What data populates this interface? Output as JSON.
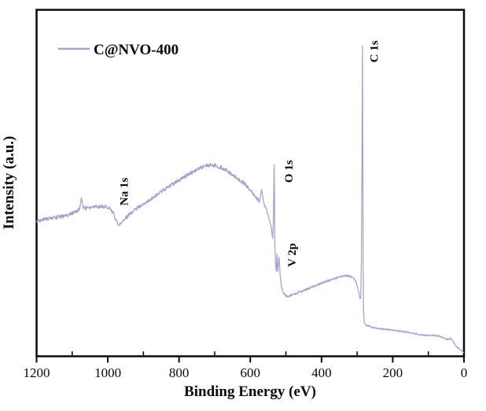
{
  "figure": {
    "kind": "XPS survey spectrum",
    "background": "#ffffff",
    "frame_color": "#0a0a0a",
    "text_color": "#0a0a0a"
  },
  "legend": {
    "label": "C@NVO-400"
  },
  "chart_data": {
    "type": "line",
    "title": "",
    "xlabel": "Binding Energy (eV)",
    "ylabel": "Intensity (a.u.)",
    "legend_position": "top-left",
    "grid": false,
    "x_axis": {
      "min": 0,
      "max": 1200,
      "inverted": true,
      "major_ticks": [
        1200,
        1000,
        800,
        600,
        400,
        200,
        0
      ],
      "minor_ticks": [
        1100,
        900,
        700,
        500,
        300,
        100
      ]
    },
    "y_axis": {
      "label": "Intensity (a.u.)",
      "ticks": [],
      "units": "arbitrary"
    },
    "series": [
      {
        "name": "C@NVO-400",
        "color": "#a8a2cb",
        "points_format": "[binding_energy_eV, intensity_fraction_of_axis_height]",
        "points": [
          [
            1200,
            0.39
          ],
          [
            1170,
            0.396
          ],
          [
            1140,
            0.402
          ],
          [
            1110,
            0.409
          ],
          [
            1088,
            0.418
          ],
          [
            1079,
            0.425
          ],
          [
            1074,
            0.458
          ],
          [
            1069,
            0.428
          ],
          [
            1045,
            0.43
          ],
          [
            1015,
            0.433
          ],
          [
            995,
            0.43
          ],
          [
            982,
            0.408
          ],
          [
            972,
            0.379
          ],
          [
            962,
            0.384
          ],
          [
            950,
            0.398
          ],
          [
            935,
            0.414
          ],
          [
            910,
            0.434
          ],
          [
            885,
            0.45
          ],
          [
            860,
            0.468
          ],
          [
            835,
            0.486
          ],
          [
            810,
            0.502
          ],
          [
            785,
            0.518
          ],
          [
            760,
            0.533
          ],
          [
            735,
            0.546
          ],
          [
            715,
            0.552
          ],
          [
            698,
            0.551
          ],
          [
            682,
            0.545
          ],
          [
            660,
            0.532
          ],
          [
            636,
            0.513
          ],
          [
            615,
            0.496
          ],
          [
            598,
            0.477
          ],
          [
            586,
            0.463
          ],
          [
            574,
            0.447
          ],
          [
            568,
            0.482
          ],
          [
            562,
            0.441
          ],
          [
            555,
            0.425
          ],
          [
            548,
            0.402
          ],
          [
            542,
            0.376
          ],
          [
            537,
            0.34
          ],
          [
            535,
            0.4
          ],
          [
            533,
            0.552
          ],
          [
            532,
            0.47
          ],
          [
            531,
            0.33
          ],
          [
            529,
            0.262
          ],
          [
            527,
            0.246
          ],
          [
            525,
            0.295
          ],
          [
            523,
            0.244
          ],
          [
            519,
            0.286
          ],
          [
            516,
            0.232
          ],
          [
            512,
            0.2
          ],
          [
            507,
            0.184
          ],
          [
            498,
            0.172
          ],
          [
            487,
            0.176
          ],
          [
            470,
            0.182
          ],
          [
            450,
            0.19
          ],
          [
            430,
            0.198
          ],
          [
            410,
            0.207
          ],
          [
            390,
            0.215
          ],
          [
            370,
            0.222
          ],
          [
            350,
            0.229
          ],
          [
            335,
            0.233
          ],
          [
            322,
            0.232
          ],
          [
            312,
            0.227
          ],
          [
            303,
            0.214
          ],
          [
            297,
            0.192
          ],
          [
            292,
            0.168
          ],
          [
            290,
            0.166
          ],
          [
            288,
            0.28
          ],
          [
            286,
            0.66
          ],
          [
            285,
            0.896
          ],
          [
            284,
            0.58
          ],
          [
            283,
            0.25
          ],
          [
            282,
            0.13
          ],
          [
            280,
            0.098
          ],
          [
            275,
            0.09
          ],
          [
            262,
            0.085
          ],
          [
            245,
            0.081
          ],
          [
            228,
            0.079
          ],
          [
            210,
            0.077
          ],
          [
            190,
            0.074
          ],
          [
            170,
            0.071
          ],
          [
            150,
            0.068
          ],
          [
            130,
            0.064
          ],
          [
            110,
            0.06
          ],
          [
            90,
            0.061
          ],
          [
            73,
            0.059
          ],
          [
            55,
            0.052
          ],
          [
            44,
            0.048
          ],
          [
            37,
            0.052
          ],
          [
            29,
            0.039
          ],
          [
            22,
            0.029
          ],
          [
            15,
            0.023
          ],
          [
            7,
            0.016
          ],
          [
            0,
            0.009
          ]
        ],
        "noise": {
          "seed": 42,
          "bands": [
            {
              "from": 1200,
              "to": 540,
              "amp": 0.0056
            },
            {
              "from": 540,
              "to": 450,
              "amp": 0.0035
            },
            {
              "from": 450,
              "to": 295,
              "amp": 0.0028
            },
            {
              "from": 295,
              "to": 0,
              "amp": 0.002
            }
          ]
        }
      }
    ],
    "annotations": [
      {
        "label": "Na 1s",
        "x_ev": 953,
        "y_u": 0.435
      },
      {
        "label": "O 1s",
        "x_ev": 490,
        "y_u": 0.501
      },
      {
        "label": "V 2p",
        "x_ev": 481,
        "y_u": 0.258
      },
      {
        "label": "C 1s",
        "x_ev": 251,
        "y_u": 0.848
      }
    ]
  }
}
